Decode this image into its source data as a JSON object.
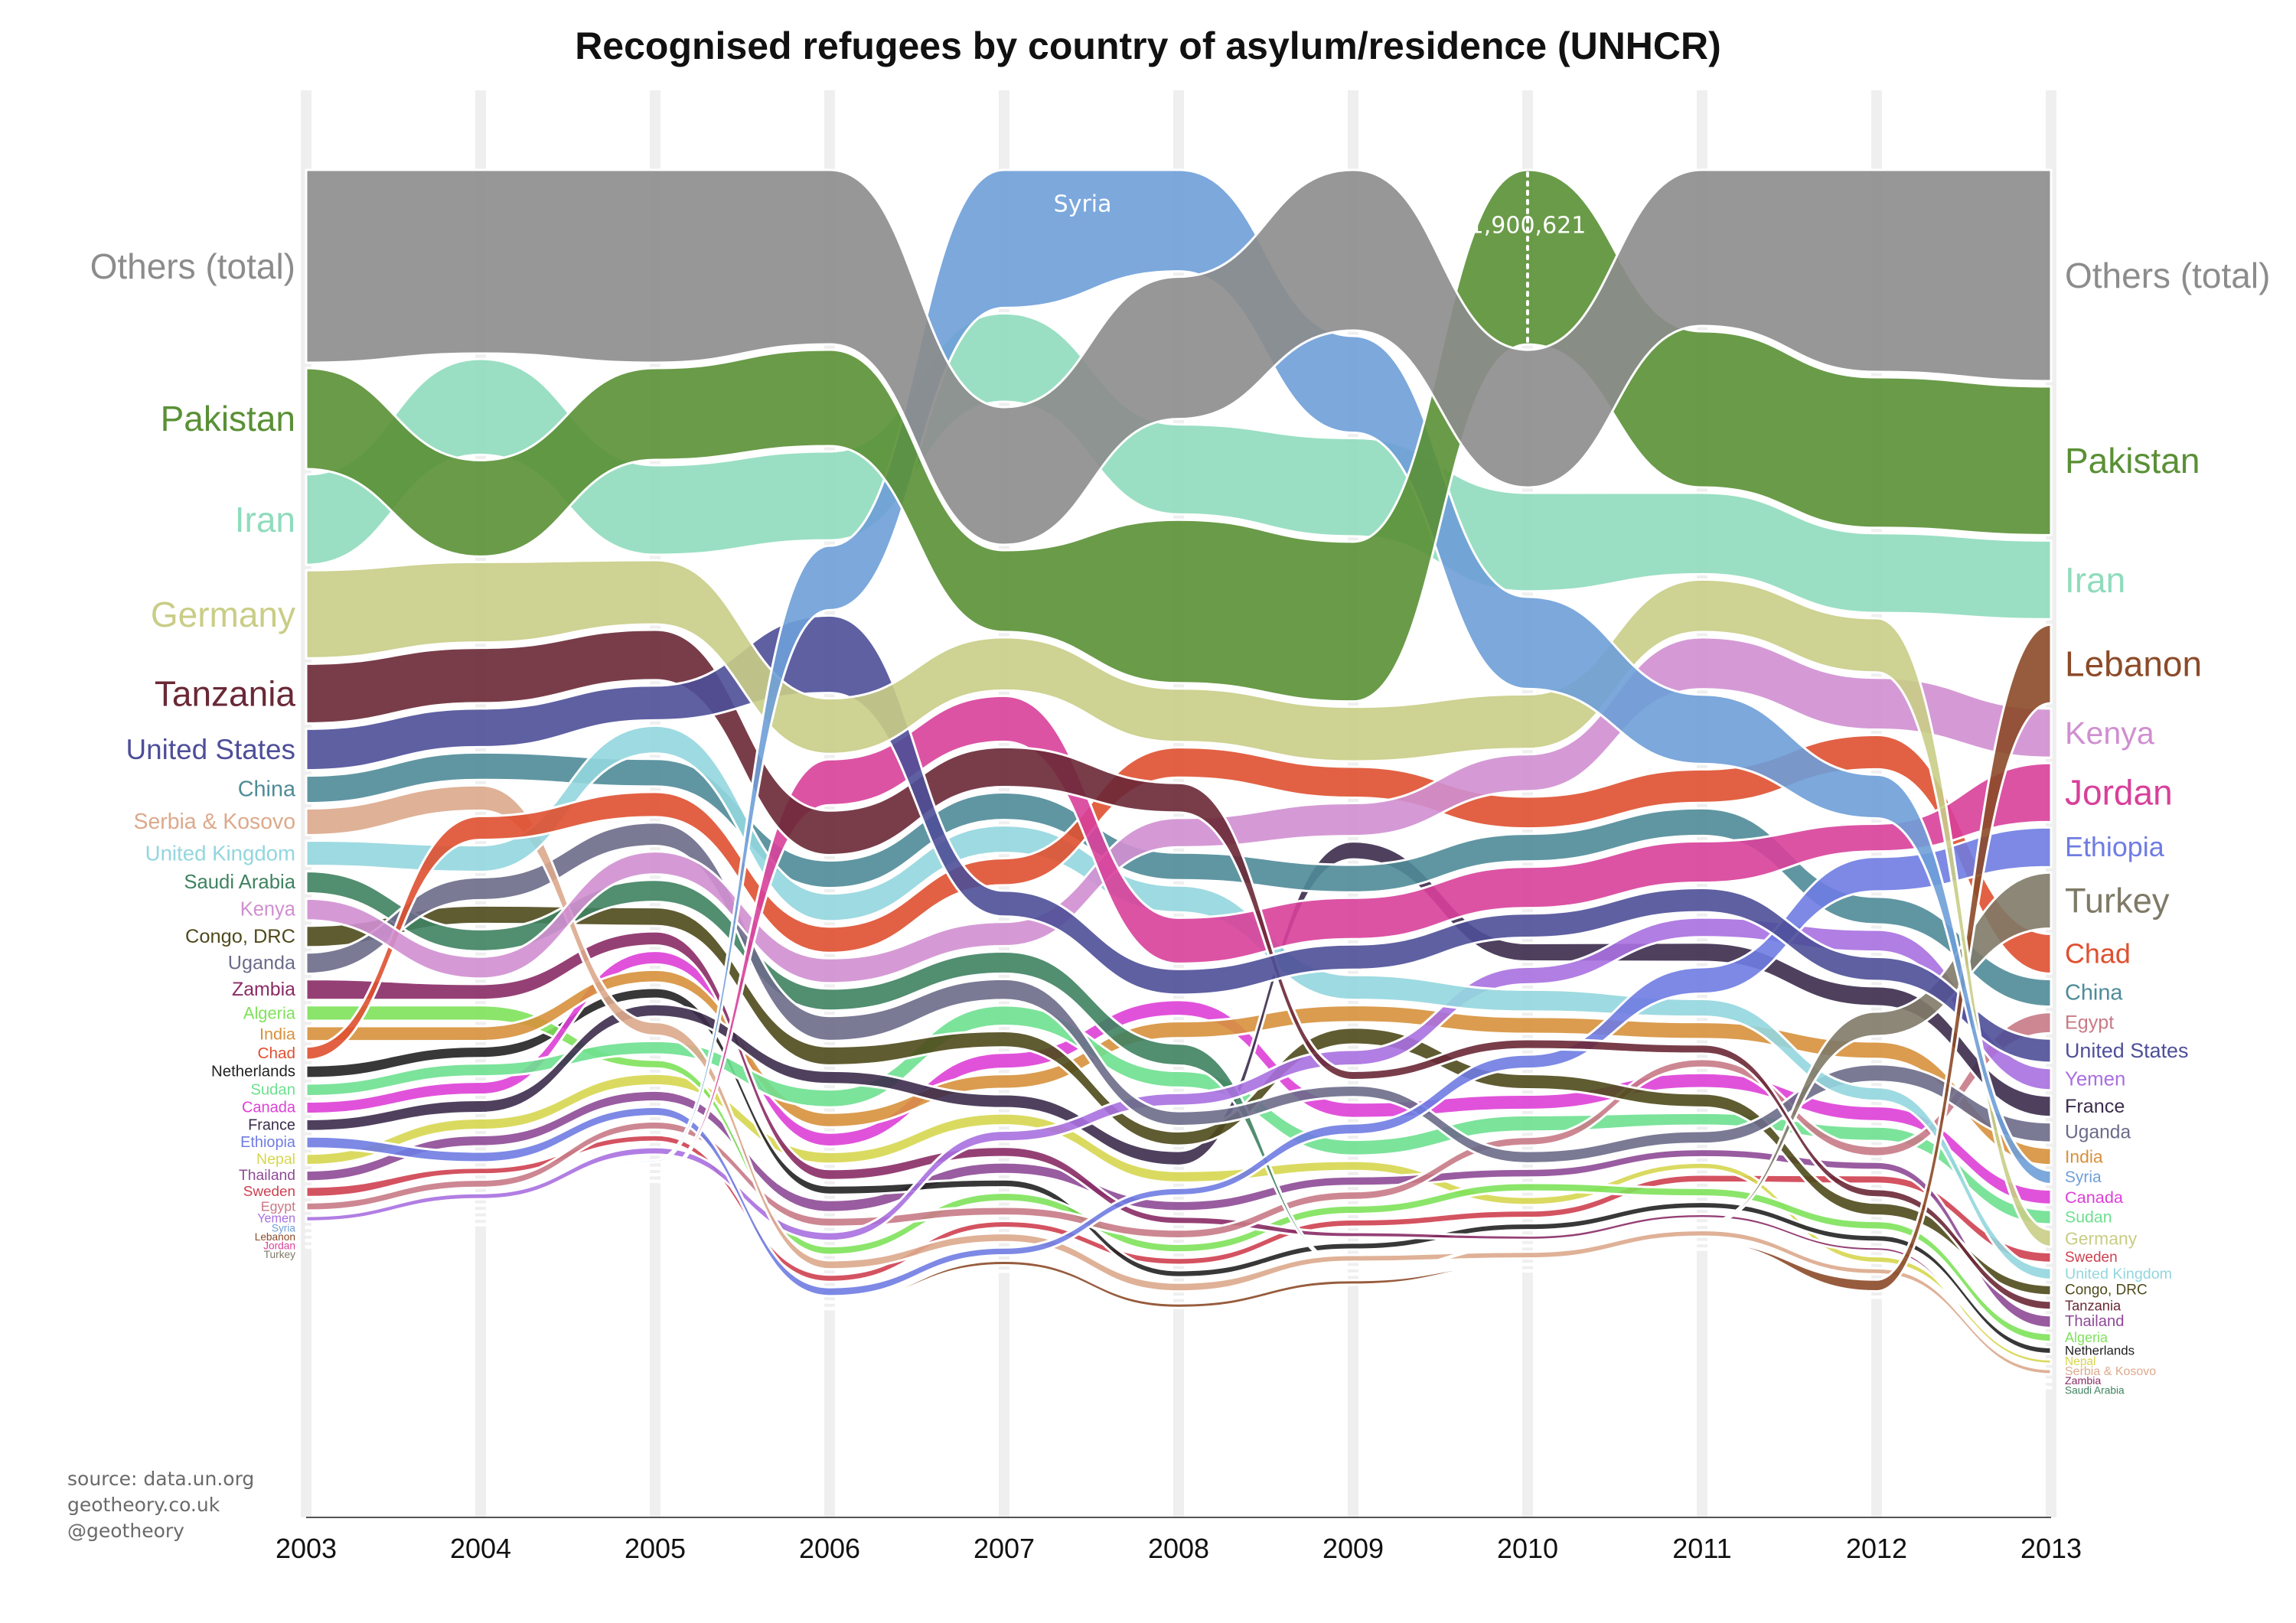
{
  "chart_data": {
    "type": "area",
    "subtype": "bump-chart",
    "title": "Recognised refugees by country of asylum/residence (UNHCR)",
    "source_lines": [
      "source: data.un.org",
      "geotheory.co.uk",
      "@geotheory"
    ],
    "x": [
      "2003",
      "2004",
      "2005",
      "2006",
      "2007",
      "2008",
      "2009",
      "2010",
      "2011",
      "2012",
      "2013"
    ],
    "annotation": {
      "label": "1,900,621",
      "year": "2010",
      "series": "Pakistan"
    },
    "inline_label": {
      "label": "Syria",
      "year": "2007"
    },
    "series": [
      {
        "name": "Others (total)",
        "color": "#8c8c8c",
        "ranks": [
          1,
          1,
          1,
          1,
          3,
          2,
          1,
          2,
          1,
          1,
          1
        ],
        "values": [
          2100000,
          2000000,
          2100000,
          1900000,
          1500000,
          1550000,
          1750000,
          1500000,
          1700000,
          2200000,
          2300000
        ]
      },
      {
        "name": "Pakistan",
        "color": "#5a9035",
        "ranks": [
          2,
          3,
          2,
          2,
          4,
          4,
          4,
          1,
          2,
          2,
          2
        ],
        "values": [
          1100000,
          1050000,
          1000000,
          1050000,
          890000,
          1780000,
          1740000,
          1900621,
          1700000,
          1640000,
          1620000
        ]
      },
      {
        "name": "Iran",
        "color": "#8fdcbc",
        "ranks": [
          3,
          2,
          3,
          3,
          2,
          3,
          3,
          3,
          3,
          3,
          3
        ],
        "values": [
          985000,
          1045000,
          975000,
          968000,
          964000,
          980000,
          1070000,
          1073000,
          886000,
          868000,
          857000
        ]
      },
      {
        "name": "Germany",
        "color": "#c9cd86",
        "ranks": [
          4,
          4,
          4,
          5,
          5,
          5,
          5,
          5,
          5,
          4,
          25
        ],
        "values": [
          960000,
          877000,
          700000,
          605000,
          579000,
          582000,
          594000,
          594000,
          571000,
          590000,
          187000
        ]
      },
      {
        "name": "Tanzania",
        "color": "#6a2836",
        "ranks": [
          5,
          5,
          5,
          7,
          7,
          7,
          16,
          16,
          17,
          25,
          30
        ],
        "values": [
          650000,
          602000,
          549000,
          485000,
          435000,
          322000,
          100000,
          110000,
          100000,
          90000,
          100000
        ]
      },
      {
        "name": "United States",
        "color": "#4e4f98",
        "ranks": [
          6,
          6,
          6,
          4,
          10,
          12,
          10,
          11,
          11,
          12,
          12
        ],
        "values": [
          452000,
          421000,
          379000,
          844000,
          282000,
          280000,
          275000,
          265000,
          263000,
          262000,
          263000
        ]
      },
      {
        "name": "China",
        "color": "#4f8b98",
        "ranks": [
          7,
          7,
          8,
          8,
          8,
          8,
          9,
          9,
          9,
          10,
          10
        ],
        "values": [
          299000,
          299000,
          301000,
          301000,
          301000,
          300000,
          301000,
          301000,
          301000,
          301000,
          301000
        ]
      },
      {
        "name": "Serbia & Kosovo",
        "color": "#dca98c",
        "ranks": [
          8,
          8,
          18,
          25,
          26,
          27,
          29,
          31,
          31,
          31,
          37
        ],
        "values": [
          291000,
          276000,
          148000,
          98000,
          97000,
          96000,
          74000,
          74000,
          70000,
          66000,
          57000
        ]
      },
      {
        "name": "United Kingdom",
        "color": "#93d6de",
        "ranks": [
          9,
          9,
          7,
          9,
          9,
          9,
          11,
          13,
          15,
          18,
          27
        ],
        "values": [
          276000,
          290000,
          303000,
          302000,
          300000,
          292000,
          270000,
          238000,
          193000,
          149000,
          126000
        ]
      },
      {
        "name": "Saudi Arabia",
        "color": "#3f8260",
        "ranks": [
          10,
          12,
          12,
          12,
          13,
          15,
          30,
          33,
          33,
          33,
          40
        ],
        "values": [
          240000,
          240000,
          240000,
          240000,
          240000,
          240000,
          570,
          580,
          560,
          560,
          560
        ]
      },
      {
        "name": "Kenya",
        "color": "#d08fd0",
        "ranks": [
          11,
          13,
          11,
          11,
          11,
          7,
          7,
          6,
          5,
          5,
          5
        ],
        "values": [
          237000,
          239000,
          251000,
          272000,
          265000,
          320000,
          359000,
          402000,
          566000,
          565000,
          535000
        ]
      },
      {
        "name": "Congo, DRC",
        "color": "#4f4a1c",
        "ranks": [
          12,
          11,
          13,
          14,
          16,
          19,
          13,
          18,
          20,
          25,
          29
        ],
        "values": [
          234000,
          200000,
          204000,
          208000,
          177000,
          155000,
          185000,
          166000,
          153000,
          141000,
          113000
        ]
      },
      {
        "name": "Uganda",
        "color": "#6b6b8a",
        "ranks": [
          13,
          10,
          10,
          13,
          14,
          17,
          17,
          22,
          22,
          16,
          14
        ],
        "values": [
          231000,
          250000,
          257000,
          272000,
          229000,
          162000,
          128000,
          135000,
          139000,
          191000,
          220000
        ]
      },
      {
        "name": "Zambia",
        "color": "#8a2b66",
        "ranks": [
          14,
          14,
          14,
          20,
          21,
          22,
          26,
          28,
          28,
          28,
          37
        ],
        "values": [
          226000,
          174000,
          155000,
          120000,
          112000,
          83000,
          57000,
          47000,
          45000,
          41000,
          23000
        ]
      },
      {
        "name": "Algeria",
        "color": "#7ee25a",
        "ranks": [
          15,
          15,
          20,
          24,
          23,
          24,
          24,
          24,
          26,
          27,
          33
        ],
        "values": [
          169000,
          169000,
          94000,
          94000,
          94000,
          94000,
          94000,
          94000,
          94000,
          94000,
          94000
        ]
      },
      {
        "name": "India",
        "color": "#d7913c",
        "ranks": [
          16,
          16,
          16,
          17,
          18,
          14,
          12,
          14,
          15,
          15,
          16
        ],
        "values": [
          164000,
          162000,
          139000,
          158000,
          161000,
          184000,
          185000,
          184000,
          185000,
          190000,
          188000
        ]
      },
      {
        "name": "Chad",
        "color": "#df5030",
        "ranks": [
          17,
          8,
          9,
          10,
          9,
          6,
          6,
          7,
          8,
          6,
          8
        ],
        "values": [
          146000,
          260000,
          275000,
          287000,
          294000,
          330000,
          338000,
          347000,
          366000,
          373000,
          434000
        ]
      },
      {
        "name": "Netherlands",
        "color": "#222222",
        "ranks": [
          18,
          17,
          17,
          21,
          22,
          26,
          27,
          27,
          27,
          27,
          34
        ],
        "values": [
          140000,
          127000,
          118000,
          100000,
          87000,
          77000,
          76000,
          75000,
          74000,
          74000,
          74000
        ]
      },
      {
        "name": "Sudan",
        "color": "#6ee090",
        "ranks": [
          19,
          18,
          19,
          16,
          15,
          16,
          19,
          20,
          21,
          20,
          24
        ],
        "values": [
          138000,
          141000,
          147000,
          196000,
          222000,
          181000,
          171000,
          178000,
          139000,
          156000,
          157000
        ]
      },
      {
        "name": "Canada",
        "color": "#de3fd7",
        "ranks": [
          20,
          19,
          15,
          18,
          17,
          13,
          17,
          18,
          19,
          18,
          20
        ],
        "values": [
          133000,
          141000,
          147000,
          152000,
          175000,
          173000,
          169000,
          165000,
          164000,
          164000,
          164000
        ]
      },
      {
        "name": "France",
        "color": "#3c2c4c",
        "ranks": [
          21,
          20,
          17,
          15,
          18,
          19,
          8,
          11,
          13,
          13,
          13
        ],
        "values": [
          130000,
          141000,
          137000,
          145000,
          151000,
          160000,
          196000,
          200000,
          210000,
          217000,
          232000
        ]
      },
      {
        "name": "Ethiopia",
        "color": "#6f7ce2",
        "ranks": [
          22,
          23,
          22,
          27,
          27,
          21,
          18,
          17,
          13,
          9,
          7
        ],
        "values": [
          130000,
          116000,
          101000,
          97000,
          86000,
          84000,
          121000,
          154000,
          288000,
          376000,
          434000
        ]
      },
      {
        "name": "Nepal",
        "color": "#d6d64f",
        "ranks": [
          23,
          21,
          20,
          19,
          20,
          20,
          20,
          24,
          24,
          29,
          36
        ],
        "values": [
          124000,
          125000,
          126000,
          128000,
          129000,
          125000,
          109000,
          89000,
          72000,
          72000,
          47000
        ]
      },
      {
        "name": "Thailand",
        "color": "#8e4a96",
        "ranks": [
          24,
          22,
          21,
          21,
          21,
          21,
          22,
          23,
          23,
          24,
          31
        ],
        "values": [
          119000,
          121000,
          117000,
          133000,
          126000,
          112000,
          105000,
          96000,
          89000,
          89000,
          137000
        ]
      },
      {
        "name": "Sweden",
        "color": "#cf4050",
        "ranks": [
          25,
          25,
          25,
          26,
          25,
          25,
          25,
          25,
          25,
          24,
          26
        ],
        "values": [
          112000,
          73000,
          74000,
          79000,
          75000,
          77000,
          80000,
          82000,
          86000,
          92000,
          114000
        ]
      },
      {
        "name": "Egypt",
        "color": "#c87a86",
        "ranks": [
          26,
          26,
          23,
          22,
          23,
          23,
          23,
          21,
          18,
          20,
          11
        ],
        "values": [
          89000,
          88000,
          89000,
          100000,
          97000,
          97000,
          95000,
          95000,
          95000,
          110000,
          230000
        ]
      },
      {
        "name": "Yemen",
        "color": "#a970e0",
        "ranks": [
          27,
          27,
          26,
          23,
          20,
          16,
          13,
          12,
          11,
          11,
          12
        ],
        "values": [
          61000,
          66000,
          81000,
          96000,
          117000,
          140000,
          170000,
          190000,
          214000,
          237000,
          242000
        ]
      },
      {
        "name": "Syria",
        "color": "#6e9ed8",
        "ranks": [
          28,
          28,
          27,
          3,
          1,
          1,
          2,
          4,
          6,
          7,
          19
        ],
        "values": [
          6000,
          7000,
          26000,
          702000,
          1503000,
          1105000,
          1054000,
          1005000,
          755000,
          476000,
          149000
        ]
      },
      {
        "name": "Lebanon",
        "color": "#8c4a28",
        "ranks": [
          29,
          29,
          29,
          30,
          30,
          30,
          32,
          32,
          32,
          32,
          4
        ],
        "values": [
          1800,
          1800,
          1100,
          1100,
          50000,
          50000,
          50000,
          8000,
          9000,
          127000,
          856000
        ]
      },
      {
        "name": "Jordan",
        "color": "#d8409a",
        "ranks": [
          30,
          30,
          30,
          5,
          6,
          10,
          9,
          10,
          10,
          8,
          6
        ],
        "values": [
          1200,
          1100,
          1000,
          500000,
          500000,
          500000,
          450000,
          450000,
          451000,
          303000,
          642000
        ]
      },
      {
        "name": "Turkey",
        "color": "#7f7a68",
        "ranks": [
          31,
          31,
          31,
          31,
          31,
          29,
          31,
          30,
          30,
          14,
          7
        ],
        "values": [
          2500,
          2300,
          2300,
          2300,
          5600,
          11000,
          10000,
          10000,
          15000,
          267000,
          610000
        ]
      }
    ]
  }
}
